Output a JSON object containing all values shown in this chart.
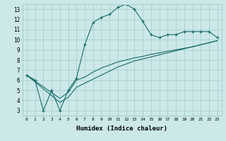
{
  "xlabel": "Humidex (Indice chaleur)",
  "ylabel": "",
  "background_color": "#cce8e8",
  "grid_color": "#aacfcf",
  "line_color": "#1a6b6b",
  "xlim": [
    -0.5,
    23.5
  ],
  "ylim": [
    2.5,
    13.5
  ],
  "xticks": [
    0,
    1,
    2,
    3,
    4,
    5,
    6,
    7,
    8,
    9,
    10,
    11,
    12,
    13,
    14,
    15,
    16,
    17,
    18,
    19,
    20,
    21,
    22,
    23
  ],
  "yticks": [
    3,
    4,
    5,
    6,
    7,
    8,
    9,
    10,
    11,
    12,
    13
  ],
  "series1_x": [
    0,
    1,
    2,
    3,
    4,
    5,
    6,
    7,
    8,
    9,
    10,
    11,
    12,
    13,
    14,
    15,
    16,
    17,
    18,
    19,
    20,
    21,
    22,
    23
  ],
  "series1_y": [
    6.5,
    6.0,
    3.0,
    5.0,
    3.0,
    5.0,
    6.2,
    9.5,
    11.7,
    12.2,
    12.5,
    13.2,
    13.5,
    13.0,
    11.8,
    10.5,
    10.2,
    10.5,
    10.5,
    10.8,
    10.8,
    10.8,
    10.8,
    10.2
  ],
  "series2_x": [
    0,
    4,
    5,
    6,
    7,
    8,
    9,
    10,
    11,
    12,
    13,
    14,
    15,
    16,
    17,
    18,
    19,
    20,
    21,
    22,
    23
  ],
  "series2_y": [
    6.5,
    4.2,
    4.8,
    6.0,
    6.3,
    6.8,
    7.2,
    7.5,
    7.8,
    8.0,
    8.2,
    8.35,
    8.55,
    8.7,
    8.85,
    9.0,
    9.15,
    9.3,
    9.5,
    9.7,
    9.9
  ],
  "series3_x": [
    0,
    4,
    5,
    6,
    7,
    8,
    9,
    10,
    11,
    12,
    13,
    14,
    15,
    16,
    17,
    18,
    19,
    20,
    21,
    22,
    23
  ],
  "series3_y": [
    6.5,
    3.8,
    4.3,
    5.3,
    5.7,
    6.1,
    6.5,
    6.9,
    7.3,
    7.6,
    7.9,
    8.1,
    8.3,
    8.5,
    8.7,
    8.9,
    9.1,
    9.3,
    9.5,
    9.7,
    9.9
  ],
  "marker": "+"
}
